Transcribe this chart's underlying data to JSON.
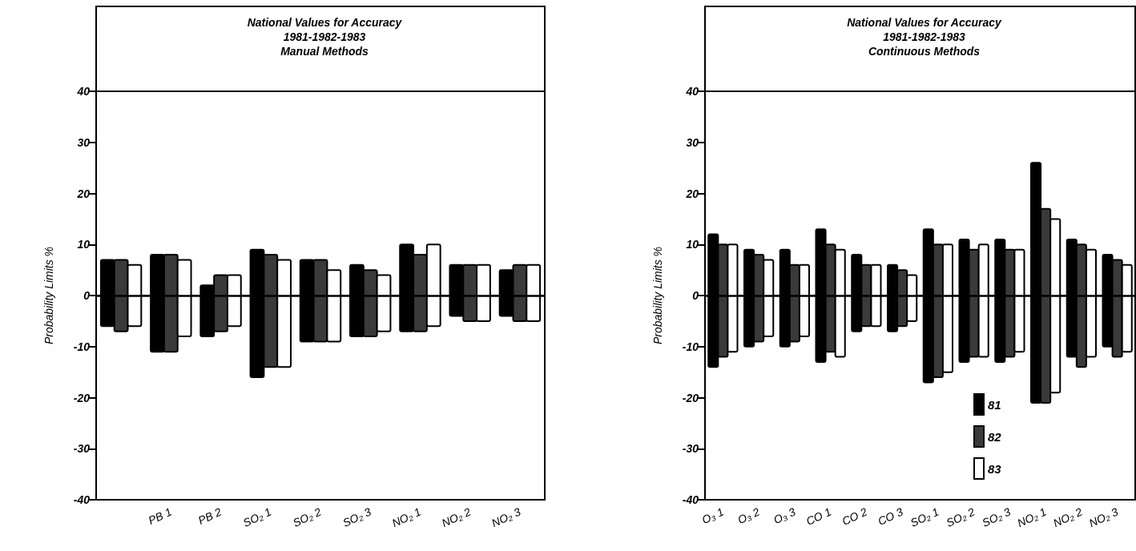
{
  "chart_data": [
    {
      "type": "bar",
      "title": "National Values for Accuracy\n1981-1982-1983\nManual Methods",
      "ylabel": "Probability Limits %",
      "categories": [
        null,
        "PB 1",
        "PB 2",
        "SO₂ 1",
        "SO₂ 2",
        "SO₂ 3",
        "NO₂ 1",
        "NO₂ 2",
        "NO₂ 3"
      ],
      "series": [
        {
          "color": "#000000",
          "base": [
            -6,
            -11,
            -8,
            -16,
            -9,
            -8,
            -7,
            -4,
            -4
          ],
          "values": [
            13,
            19,
            10,
            25,
            16,
            14,
            17,
            10,
            9
          ]
        },
        {
          "color": "#3a3a3a",
          "base": [
            -7,
            -11,
            -7,
            -14,
            -9,
            -8,
            -7,
            -5,
            -5
          ],
          "values": [
            14,
            19,
            11,
            22,
            16,
            13,
            15,
            11,
            11
          ]
        },
        {
          "color": "#ffffff",
          "base": [
            -6,
            -8,
            -6,
            -14,
            -9,
            -7,
            -6,
            -5,
            -5
          ],
          "values": [
            12,
            15,
            10,
            21,
            14,
            11,
            16,
            11,
            11
          ]
        }
      ],
      "ylim": [
        -40,
        40
      ],
      "yticks": [
        -40,
        -30,
        -20,
        -10,
        0,
        10,
        20,
        30,
        40
      ],
      "ref_lines": [
        {
          "axis": "y",
          "value": 0
        }
      ],
      "legend": false
    },
    {
      "type": "bar",
      "title": "National Values for Accuracy\n1981-1982-1983\nContinuous Methods",
      "ylabel": "Probability Limits %",
      "categories": [
        "O₃ 1",
        "O₃ 2",
        "O₃ 3",
        "CO 1",
        "CO 2",
        "CO 3",
        "SO₂ 1",
        "SO₂ 2",
        "SO₂ 3",
        "NO₂ 1",
        "NO₂ 2",
        "NO₂ 3"
      ],
      "series": [
        {
          "name": "81",
          "color": "#000000",
          "base": [
            -14,
            -10,
            -10,
            -13,
            -7,
            -7,
            -17,
            -13,
            -13,
            -21,
            -12,
            -10
          ],
          "values": [
            26,
            19,
            19,
            26,
            15,
            13,
            30,
            24,
            24,
            47,
            23,
            18
          ]
        },
        {
          "name": "82",
          "color": "#3a3a3a",
          "base": [
            -12,
            -9,
            -9,
            -11,
            -6,
            -6,
            -16,
            -12,
            -12,
            -21,
            -14,
            -12
          ],
          "values": [
            22,
            17,
            15,
            21,
            12,
            11,
            26,
            21,
            21,
            38,
            24,
            19
          ]
        },
        {
          "name": "83",
          "color": "#ffffff",
          "base": [
            -11,
            -8,
            -8,
            -12,
            -6,
            -5,
            -15,
            -12,
            -11,
            -19,
            -12,
            -11
          ],
          "values": [
            21,
            15,
            14,
            21,
            12,
            9,
            25,
            22,
            20,
            34,
            21,
            17
          ]
        }
      ],
      "ylim": [
        -40,
        40
      ],
      "yticks": [
        -40,
        -30,
        -20,
        -10,
        0,
        10,
        20,
        30,
        40
      ],
      "ref_lines": [
        {
          "axis": "y",
          "value": 0
        }
      ],
      "legend": "bottom"
    }
  ]
}
